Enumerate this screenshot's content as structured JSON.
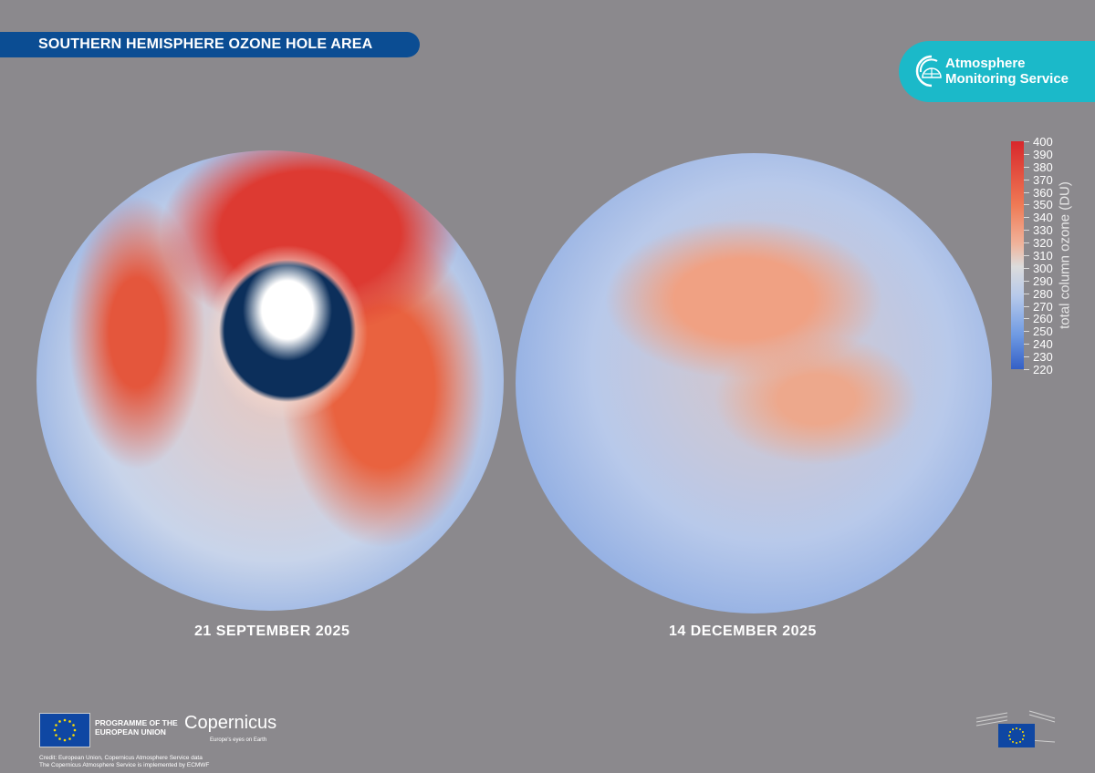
{
  "title": "SOUTHERN HEMISPHERE OZONE HOLE AREA",
  "logo": {
    "line1": "Atmosphere",
    "line2": "Monitoring Service",
    "color": "#1bb9c9"
  },
  "panels": [
    {
      "date": "21 SEPTEMBER 2025"
    },
    {
      "date": "14 DECEMBER 2025"
    }
  ],
  "colorbar": {
    "label": "total column ozone (DU)",
    "min": 220,
    "max": 400,
    "ticks": [
      "400",
      "390",
      "380",
      "370",
      "360",
      "350",
      "340",
      "330",
      "320",
      "310",
      "300",
      "290",
      "280",
      "270",
      "260",
      "250",
      "240",
      "230",
      "220"
    ],
    "colormap": "blue-white-red"
  },
  "footer": {
    "programme_line1": "PROGRAMME OF THE",
    "programme_line2": "EUROPEAN UNION",
    "copernicus": "Copernicus",
    "copernicus_tagline": "Europe's eyes on Earth",
    "credit_line1": "Credit: European Union, Copernicus Atmosphere Service data",
    "credit_line2": "The Copernicus Atmosphere Service is implemented by ECMWF"
  },
  "colors": {
    "background": "#8b898d",
    "banner": "#0b4d93"
  }
}
